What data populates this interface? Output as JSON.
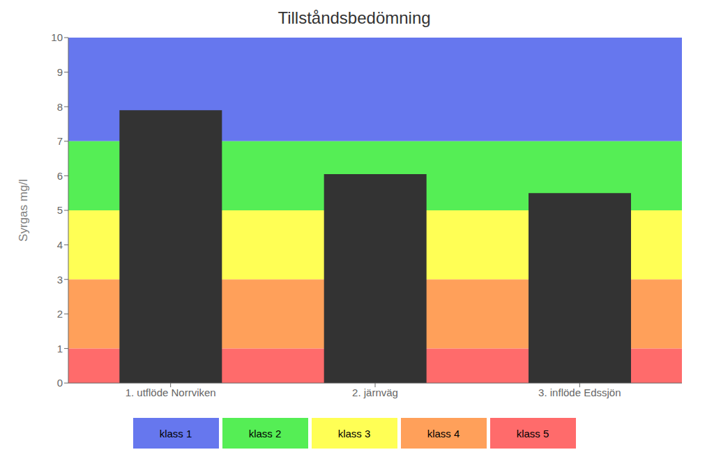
{
  "chart_data": {
    "type": "bar",
    "title": "Tillståndsbedömning",
    "ylabel": "Syrgas mg/l",
    "categories": [
      "1. utflöde Norrviken",
      "2. järnväg",
      "3. inflöde Edssjön"
    ],
    "values": [
      7.9,
      6.05,
      5.5
    ],
    "color": "#333333",
    "ylim": [
      0,
      10
    ],
    "yticks": [
      0,
      1,
      2,
      3,
      4,
      5,
      6,
      7,
      8,
      9,
      10
    ],
    "grid": false,
    "legend": "bottom",
    "bands": [
      {
        "name": "klass 1",
        "color": "#6677EE",
        "ymin": 7,
        "ymax": 10
      },
      {
        "name": "klass 2",
        "color": "#55EE55",
        "ymin": 5,
        "ymax": 7
      },
      {
        "name": "klass 3",
        "color": "#FFFF55",
        "ymin": 3,
        "ymax": 5
      },
      {
        "name": "klass 4",
        "color": "#FFA05A",
        "ymin": 1,
        "ymax": 3
      },
      {
        "name": "klass 5",
        "color": "#FF6B6B",
        "ymin": 0,
        "ymax": 1
      }
    ]
  }
}
